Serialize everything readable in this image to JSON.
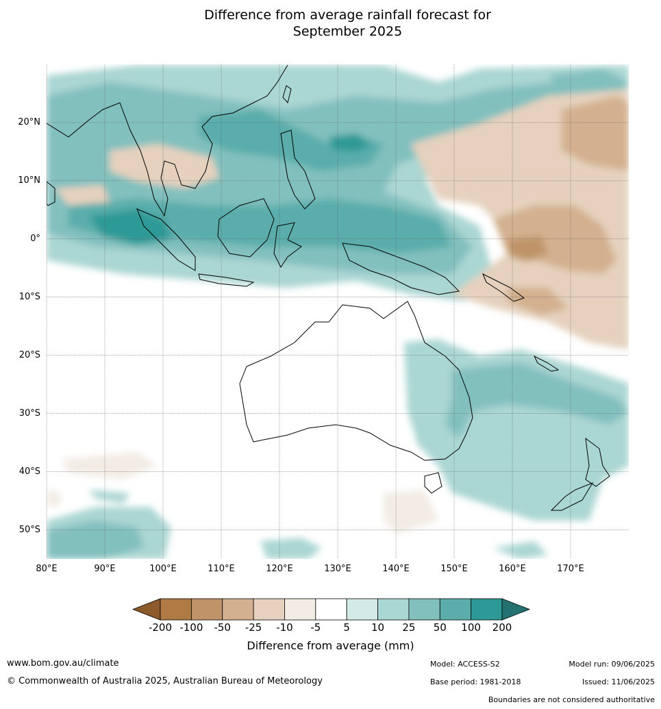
{
  "title_line1": "Difference from average rainfall forecast for",
  "title_line2": "September 2025",
  "map": {
    "lon_range": [
      80,
      180
    ],
    "lat_range": [
      -55,
      30
    ],
    "lat_labels": [
      "20°N",
      "10°N",
      "0°",
      "10°S",
      "20°S",
      "30°S",
      "40°S",
      "50°S"
    ],
    "lat_values": [
      20,
      10,
      0,
      -10,
      -20,
      -30,
      -40,
      -50
    ],
    "lon_labels": [
      "80°E",
      "90°E",
      "100°E",
      "110°E",
      "120°E",
      "130°E",
      "140°E",
      "150°E",
      "160°E",
      "170°E"
    ],
    "lon_values": [
      80,
      90,
      100,
      110,
      120,
      130,
      140,
      150,
      160,
      170
    ]
  },
  "colorbar": {
    "title": "Difference from average (mm)",
    "labels": [
      "-200",
      "-100",
      "-50",
      "-25",
      "-10",
      "-5",
      "5",
      "10",
      "25",
      "50",
      "100",
      "200"
    ],
    "colors": [
      "#8c5a2b",
      "#b07a44",
      "#c09468",
      "#d3b08f",
      "#e5d1bd",
      "#f2ece5",
      "#ffffff",
      "#d4eae7",
      "#aad6d3",
      "#82c0be",
      "#5aadab",
      "#2e9a97",
      "#24726f"
    ]
  },
  "footer": {
    "website": "www.bom.gov.au/climate",
    "copyright": "© Commonwealth of Australia 2025, Australian Bureau of Meteorology",
    "model": "Model: ACCESS-S2",
    "base_period": "Base period: 1981-2018",
    "model_run": "Model run: 09/06/2025",
    "issued": "Issued: 11/06/2025",
    "disclaimer": "Boundaries are not considered authoritative"
  }
}
